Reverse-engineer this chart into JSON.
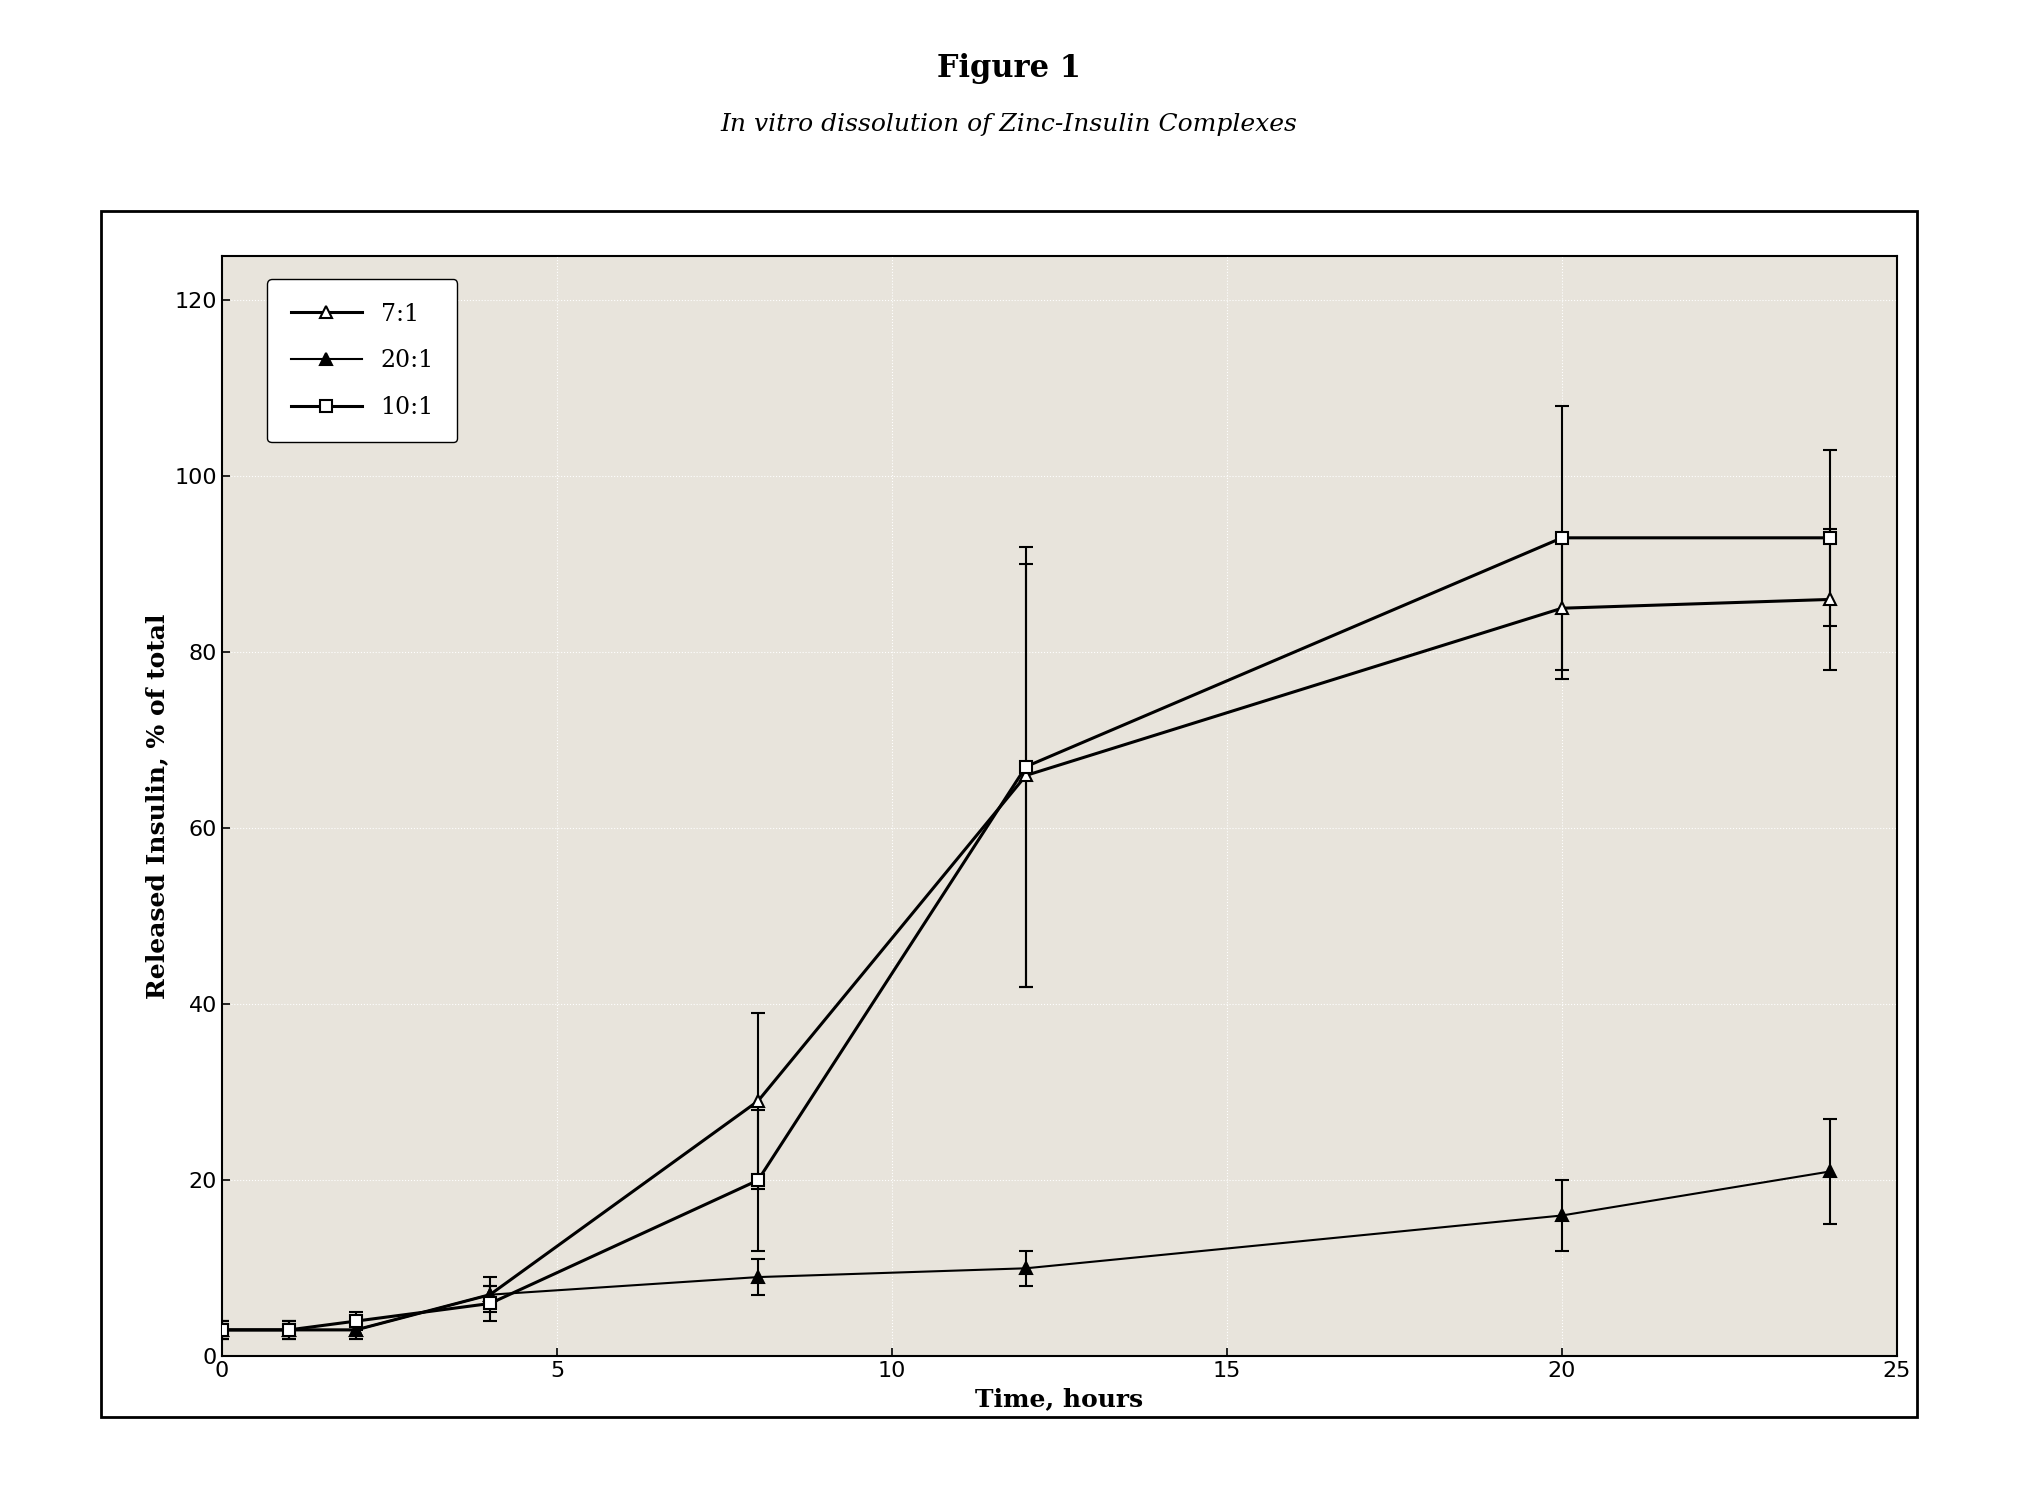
{
  "title_main": "Figure 1",
  "title_sub_italic": "In vitro",
  "title_sub_rest": " dissolution of Zinc-Insulin Complexes",
  "xlabel": "Time, hours",
  "ylabel": "Released Insulin, % of total",
  "xlim": [
    0,
    25
  ],
  "ylim": [
    0,
    125
  ],
  "xticks": [
    0,
    5,
    10,
    15,
    20,
    25
  ],
  "yticks": [
    0,
    20,
    40,
    60,
    80,
    100,
    120
  ],
  "series": [
    {
      "label": "7:1",
      "x": [
        0,
        1,
        2,
        4,
        8,
        12,
        20,
        24
      ],
      "y": [
        3,
        3,
        3,
        7,
        29,
        66,
        85,
        86
      ],
      "yerr": [
        1,
        1,
        1,
        2,
        10,
        24,
        8,
        8
      ],
      "marker": "^",
      "markersize": 9,
      "linewidth": 2.2,
      "color": "#000000",
      "markerfacecolor": "#ffffff"
    },
    {
      "label": "20:1",
      "x": [
        0,
        1,
        2,
        4,
        8,
        12,
        20,
        24
      ],
      "y": [
        3,
        3,
        3,
        7,
        9,
        10,
        16,
        21
      ],
      "yerr": [
        1,
        1,
        1,
        1,
        2,
        2,
        4,
        6
      ],
      "marker": "^",
      "markersize": 9,
      "linewidth": 1.5,
      "color": "#000000",
      "markerfacecolor": "#000000"
    },
    {
      "label": "10:1",
      "x": [
        0,
        1,
        2,
        4,
        8,
        12,
        20,
        24
      ],
      "y": [
        3,
        3,
        4,
        6,
        20,
        67,
        93,
        93
      ],
      "yerr": [
        1,
        1,
        1,
        2,
        8,
        25,
        15,
        10
      ],
      "marker": "s",
      "markersize": 8,
      "linewidth": 2.2,
      "color": "#000000",
      "markerfacecolor": "#ffffff"
    }
  ],
  "background_color": "#ffffff",
  "plot_bg_color": "#e8e4dc",
  "grid_color": "#ffffff",
  "figsize": [
    20.18,
    15.07
  ],
  "dpi": 100,
  "outer_box_color": "#000000",
  "title_main_fontsize": 22,
  "title_sub_fontsize": 18,
  "axis_label_fontsize": 18,
  "tick_fontsize": 16,
  "legend_fontsize": 17
}
